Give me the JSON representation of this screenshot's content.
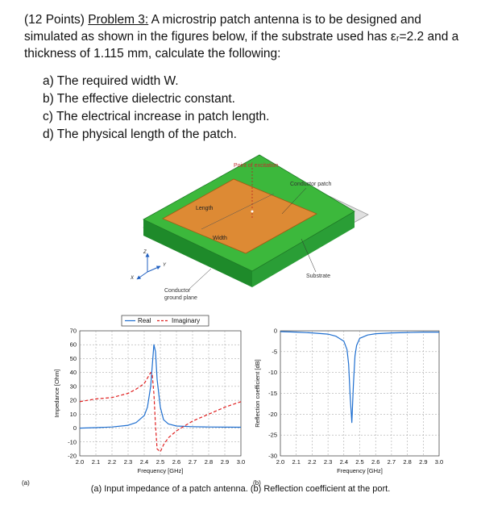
{
  "problem": {
    "points": "(12 Points)",
    "label": "Problem 3:",
    "line1": " A microstrip patch antenna is to be designed and",
    "line2": "simulated as shown in the figures below, if the substrate used has εᵣ=2.2 and a",
    "line3": "thickness of 1.115 mm, calculate the following:"
  },
  "questions": [
    "a)  The required width W.",
    "b)  The effective dielectric constant.",
    "c)  The electrical increase in patch length.",
    "d)  The physical length of the patch."
  ],
  "diagram": {
    "point_of_excitation": "Point of excitation",
    "conductor_patch": "Conductor patch",
    "length": "Length",
    "width": "Width",
    "substrate": "Substrate",
    "conductor": "Conductor",
    "ground_plane": "ground plane",
    "axis_x": "X",
    "axis_y": "Y",
    "axis_z": "Z"
  },
  "chart_data": [
    {
      "type": "line",
      "panel": "(a)",
      "xlabel": "Frequency [GHz]",
      "ylabel": "Impedance [Ohm]",
      "xlim": [
        2.0,
        3.0
      ],
      "ylim": [
        -20,
        70
      ],
      "xticks": [
        "2.0",
        "2.1",
        "2.2",
        "2.3",
        "2.4",
        "2.5",
        "2.6",
        "2.7",
        "2.8",
        "2.9",
        "3.0"
      ],
      "yticks": [
        "70",
        "60",
        "50",
        "40",
        "30",
        "20",
        "10",
        "0",
        "-10",
        "-20"
      ],
      "legend": {
        "placement": "top",
        "entries": [
          "Real",
          "Imaginary"
        ]
      },
      "grid": true,
      "series": [
        {
          "name": "Real",
          "style": "solid",
          "color": "#1f6fd0",
          "x": [
            2.0,
            2.1,
            2.2,
            2.3,
            2.35,
            2.4,
            2.42,
            2.44,
            2.45,
            2.46,
            2.47,
            2.48,
            2.5,
            2.52,
            2.55,
            2.6,
            2.7,
            2.8,
            2.9,
            3.0
          ],
          "y": [
            0,
            0.3,
            0.8,
            2,
            4,
            9,
            15,
            30,
            45,
            60,
            55,
            35,
            15,
            6,
            3,
            1.5,
            1,
            0.8,
            0.7,
            0.6
          ]
        },
        {
          "name": "Imaginary",
          "style": "dashed",
          "color": "#e02020",
          "x": [
            2.0,
            2.1,
            2.2,
            2.3,
            2.35,
            2.4,
            2.42,
            2.44,
            2.45,
            2.46,
            2.47,
            2.48,
            2.5,
            2.52,
            2.55,
            2.6,
            2.7,
            2.8,
            2.9,
            3.0
          ],
          "y": [
            19,
            21,
            22,
            25,
            28,
            32,
            36,
            40,
            38,
            25,
            2,
            -15,
            -17,
            -12,
            -7,
            -2,
            5,
            10,
            15,
            19
          ]
        }
      ]
    },
    {
      "type": "line",
      "panel": "(b)",
      "xlabel": "Frequency [GHz]",
      "ylabel": "Reflection coefficient [dB]",
      "xlim": [
        2.0,
        3.0
      ],
      "ylim": [
        -30,
        0
      ],
      "xticks": [
        "2.0",
        "2.1",
        "2.2",
        "2.3",
        "2.4",
        "2.5",
        "2.6",
        "2.7",
        "2.8",
        "2.9",
        "3.0"
      ],
      "yticks": [
        "0",
        "-5",
        "-10",
        "-15",
        "-20",
        "-25",
        "-30"
      ],
      "grid": true,
      "series": [
        {
          "color": "#1f6fd0",
          "x": [
            2.0,
            2.1,
            2.2,
            2.3,
            2.35,
            2.4,
            2.42,
            2.43,
            2.44,
            2.45,
            2.46,
            2.47,
            2.48,
            2.5,
            2.55,
            2.6,
            2.7,
            2.8,
            2.9,
            3.0
          ],
          "y": [
            -0.2,
            -0.3,
            -0.5,
            -0.8,
            -1.3,
            -2.5,
            -4.5,
            -8,
            -16,
            -22,
            -13,
            -6,
            -3.5,
            -1.8,
            -1,
            -0.7,
            -0.5,
            -0.4,
            -0.3,
            -0.3
          ]
        }
      ]
    }
  ],
  "caption": "(a) Input impedance of a patch antenna. (b) Reflection coefficient at the port."
}
